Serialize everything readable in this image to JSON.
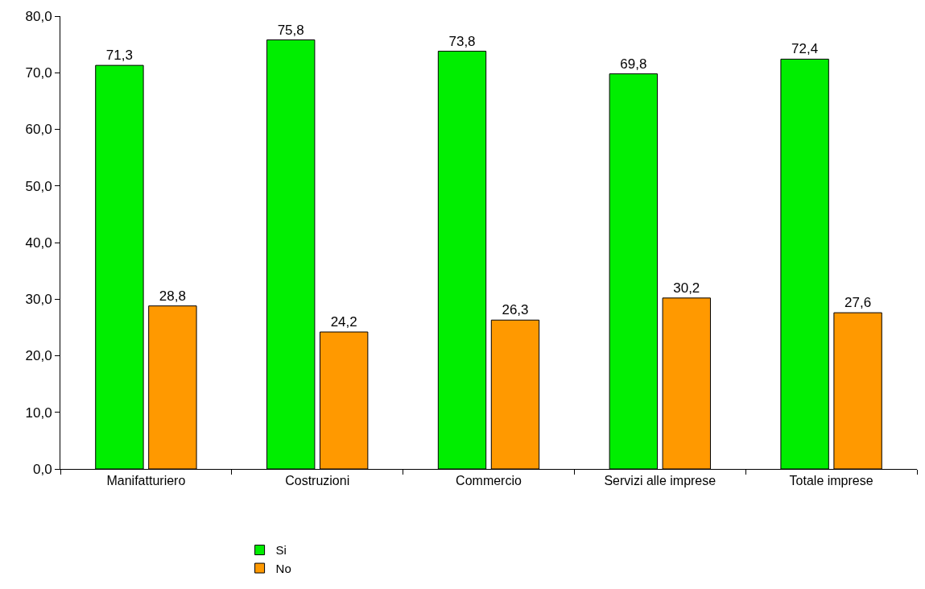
{
  "chart_data": {
    "type": "bar",
    "categories": [
      "Manifatturiero",
      "Costruzioni",
      "Commercio",
      "Servizi alle imprese",
      "Totale imprese"
    ],
    "series": [
      {
        "name": "Si",
        "color": "#00ee00",
        "values": [
          71.3,
          75.8,
          73.8,
          69.8,
          72.4
        ],
        "value_labels": [
          "71,3",
          "75,8",
          "73,8",
          "69,8",
          "72,4"
        ]
      },
      {
        "name": "No",
        "color": "#ff9900",
        "values": [
          28.8,
          24.2,
          26.3,
          30.2,
          27.6
        ],
        "value_labels": [
          "28,8",
          "24,2",
          "26,3",
          "30,2",
          "27,6"
        ]
      }
    ],
    "ylim": [
      0,
      80
    ],
    "yticks": [
      {
        "value": 0,
        "label": "0,0"
      },
      {
        "value": 10,
        "label": "10,0"
      },
      {
        "value": 20,
        "label": "20,0"
      },
      {
        "value": 30,
        "label": "30,0"
      },
      {
        "value": 40,
        "label": "40,0"
      },
      {
        "value": 50,
        "label": "50,0"
      },
      {
        "value": 60,
        "label": "60,0"
      },
      {
        "value": 70,
        "label": "70,0"
      },
      {
        "value": 80,
        "label": "80,0"
      }
    ],
    "grid": false,
    "legend": "bottom"
  }
}
